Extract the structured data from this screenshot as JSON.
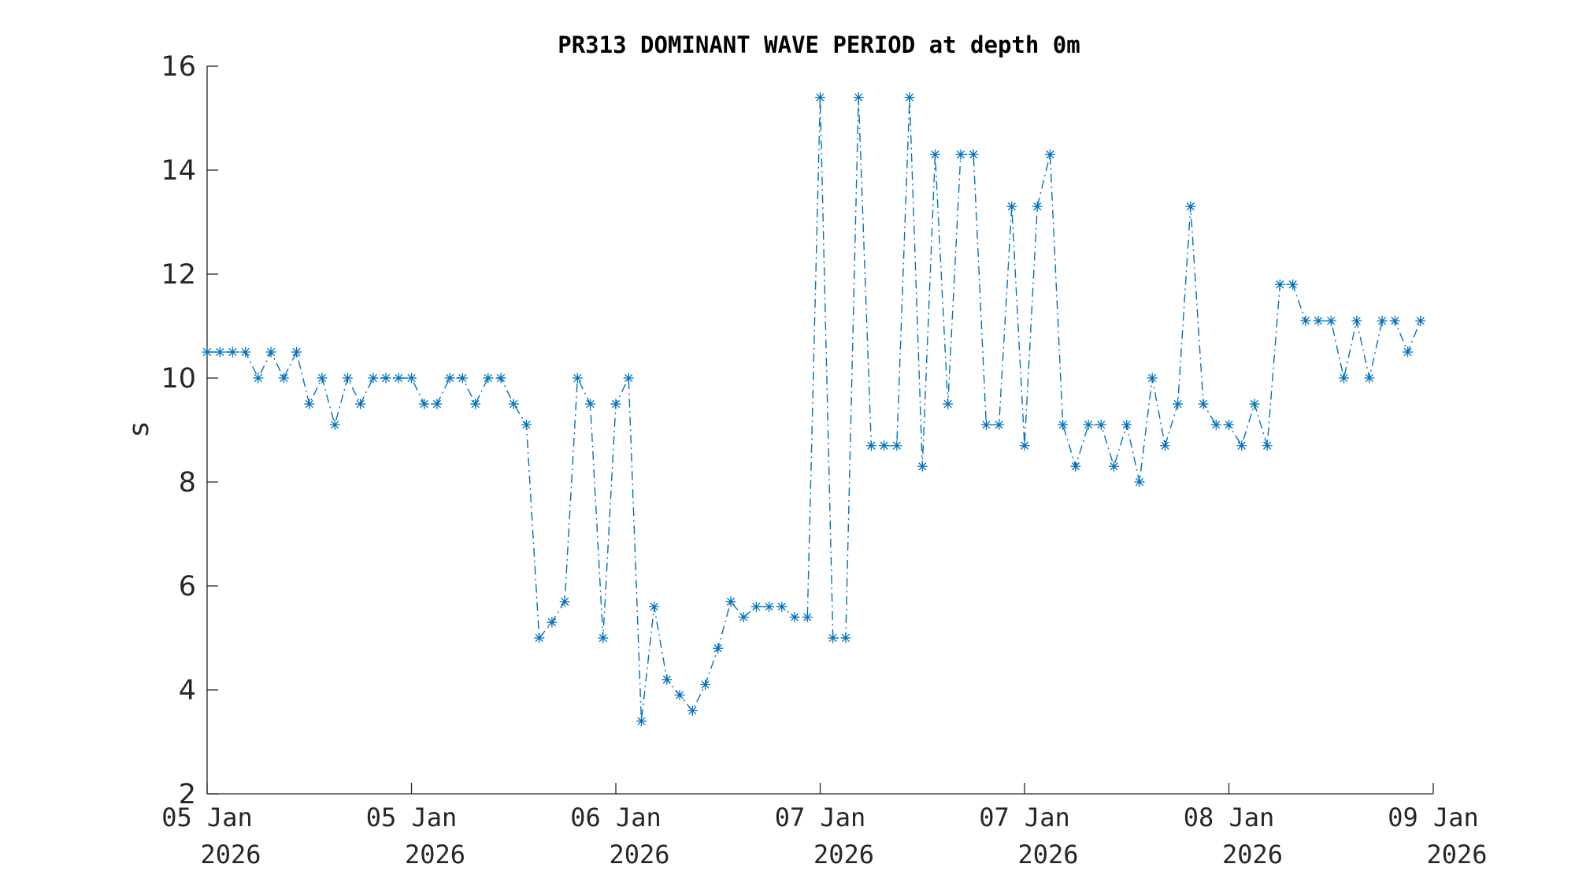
{
  "chart_data": {
    "type": "line",
    "title": "PR313 DOMINANT WAVE PERIOD at depth 0m",
    "xlabel": "",
    "ylabel": "s",
    "ylim": [
      2,
      16
    ],
    "yticks": [
      "2",
      "4",
      "6",
      "8",
      "10",
      "12",
      "14",
      "16"
    ],
    "xlim": [
      0,
      96
    ],
    "xtick_labels": [
      {
        "date": "05 Jan",
        "year": "2026"
      },
      {
        "date": "05 Jan",
        "year": "2026"
      },
      {
        "date": "06 Jan",
        "year": "2026"
      },
      {
        "date": "07 Jan",
        "year": "2026"
      },
      {
        "date": "07 Jan",
        "year": "2026"
      },
      {
        "date": "08 Jan",
        "year": "2026"
      },
      {
        "date": "09 Jan",
        "year": "2026"
      }
    ],
    "grid": false,
    "line_style": "dash-dot",
    "marker": "asterisk",
    "color": "#0072BD",
    "series": [
      {
        "values": [
          10.5,
          10.5,
          10.5,
          10.5,
          10.0,
          10.5,
          10.0,
          10.5,
          9.5,
          10.0,
          9.1,
          10.0,
          9.5,
          10.0,
          10.0,
          10.0,
          10.0,
          9.5,
          9.5,
          10.0,
          10.0,
          9.5,
          10.0,
          10.0,
          9.5,
          9.1,
          5.0,
          5.3,
          5.7,
          10.0,
          9.5,
          5.0,
          9.5,
          10.0,
          3.4,
          5.6,
          4.2,
          3.9,
          3.6,
          4.1,
          4.8,
          5.7,
          5.4,
          5.6,
          5.6,
          5.6,
          5.4,
          5.4,
          15.4,
          5.0,
          5.0,
          15.4,
          8.7,
          8.7,
          8.7,
          15.4,
          8.3,
          14.3,
          9.5,
          14.3,
          14.3,
          9.1,
          9.1,
          13.3,
          8.7,
          13.3,
          14.3,
          9.1,
          8.3,
          9.1,
          9.1,
          8.3,
          9.1,
          8.0,
          10.0,
          8.7,
          9.5,
          13.3,
          9.5,
          9.1,
          9.1,
          8.7,
          9.5,
          8.7,
          11.8,
          11.8,
          11.1,
          11.1,
          11.1,
          10.0,
          11.1,
          10.0,
          11.1,
          11.1,
          10.5,
          11.1
        ]
      }
    ]
  }
}
